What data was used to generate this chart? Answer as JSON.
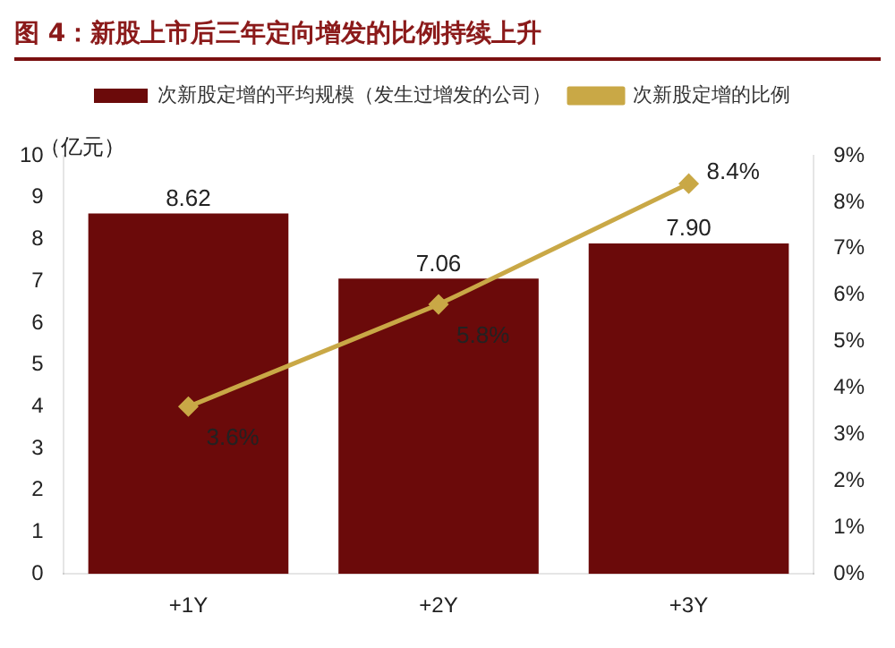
{
  "chart_data": {
    "type": "bar",
    "title": "图 4：新股上市后三年定向增发的比例持续上升",
    "ylabel": "（亿元）",
    "categories": [
      "+1Y",
      "+2Y",
      "+3Y"
    ],
    "series": [
      {
        "name": "次新股定增的平均规模（发生过增发的公司）",
        "color": "#6b0a0a",
        "values": [
          8.62,
          7.06,
          7.9
        ],
        "value_labels": [
          "8.62",
          "7.06",
          "7.90"
        ]
      },
      {
        "name": "次新股定增的比例",
        "type": "line",
        "axis": "y2",
        "color": "#c9a846",
        "values": [
          3.6,
          5.8,
          8.4
        ],
        "value_labels": [
          "3.6%",
          "5.8%",
          "8.4%"
        ]
      }
    ],
    "ylim": [
      0,
      10
    ],
    "yticks": [
      0,
      1,
      2,
      3,
      4,
      5,
      6,
      7,
      8,
      9,
      10
    ],
    "y2lim": [
      0,
      9
    ],
    "y2ticks": [
      {
        "value": 0,
        "label": "0%"
      },
      {
        "value": 1,
        "label": "1%"
      },
      {
        "value": 2,
        "label": "2%"
      },
      {
        "value": 3,
        "label": "3%"
      },
      {
        "value": 4,
        "label": "4%"
      },
      {
        "value": 5,
        "label": "5%"
      },
      {
        "value": 6,
        "label": "6%"
      },
      {
        "value": 7,
        "label": "7%"
      },
      {
        "value": 8,
        "label": "8%"
      },
      {
        "value": 9,
        "label": "9%"
      }
    ],
    "grid": false,
    "legend": "top",
    "marker": "diamond",
    "line_style": "solid"
  }
}
